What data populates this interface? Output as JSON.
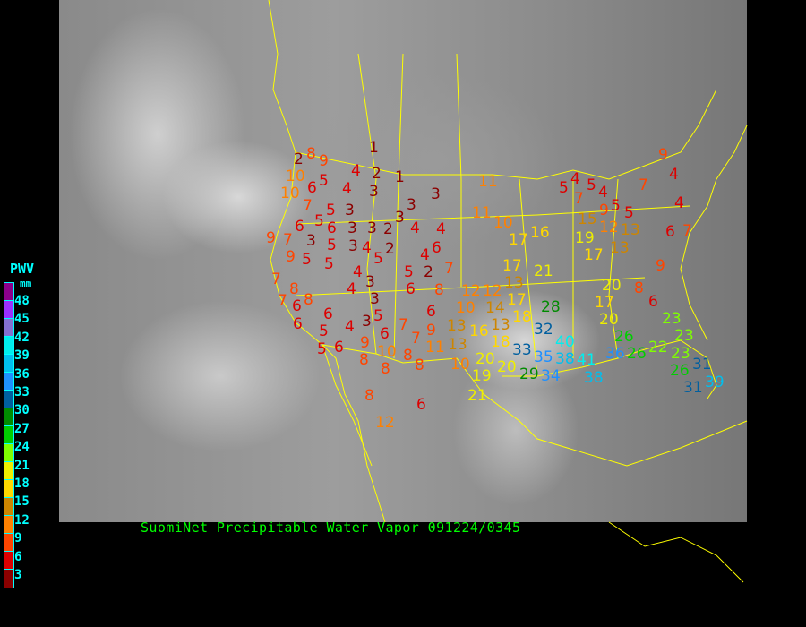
{
  "title": "SuomiNet Precipitable Water Vapor 091224/0345",
  "legend": {
    "title": "PWV",
    "unit": "mm",
    "labels": [
      "48",
      "45",
      "42",
      "39",
      "36",
      "33",
      "30",
      "27",
      "24",
      "21",
      "18",
      "15",
      "12",
      "9",
      "6",
      "3"
    ],
    "colors": [
      "#8b008b",
      "#9b30ff",
      "#8470d0",
      "#00eeee",
      "#00bfee",
      "#1e90ff",
      "#005f9f",
      "#008b00",
      "#00cd00",
      "#7fff00",
      "#eeee00",
      "#ffd700",
      "#cd8500",
      "#ff8000",
      "#ff4500",
      "#dd0000",
      "#8b0000"
    ]
  },
  "colors": {
    "border_lines": "#ffff00",
    "title": "#00ff00",
    "legend_text": "#00ffff"
  },
  "stations": [
    "1",
    "8",
    "9",
    "2",
    "10",
    "5",
    "6",
    "4",
    "2",
    "1",
    "3",
    "4",
    "10",
    "7",
    "5",
    "5",
    "6",
    "3",
    "3",
    "3",
    "3",
    "4",
    "4",
    "2",
    "3",
    "3",
    "6",
    "9",
    "7",
    "3",
    "5",
    "3",
    "4",
    "2",
    "9",
    "5",
    "5",
    "5",
    "6",
    "4",
    "2",
    "7",
    "5",
    "4",
    "7",
    "8",
    "4",
    "3",
    "6",
    "8",
    "12",
    "7",
    "8",
    "6",
    "6",
    "3",
    "5",
    "6",
    "10",
    "14",
    "6",
    "3",
    "4",
    "7",
    "6",
    "9",
    "13",
    "5",
    "5",
    "6",
    "9",
    "7",
    "10",
    "11",
    "13",
    "8",
    "8",
    "8",
    "8",
    "10",
    "19",
    "20",
    "21",
    "8",
    "6",
    "12",
    "16",
    "13",
    "18",
    "11",
    "11",
    "10",
    "16",
    "17",
    "5",
    "4",
    "5",
    "7",
    "4",
    "5",
    "9",
    "15",
    "12",
    "5",
    "7",
    "4",
    "4",
    "13",
    "13",
    "19",
    "17",
    "6",
    "7",
    "9",
    "9",
    "17",
    "21",
    "13",
    "12",
    "17",
    "18",
    "28",
    "32",
    "40",
    "33",
    "35",
    "38",
    "41",
    "20",
    "29",
    "34",
    "38",
    "20",
    "17",
    "20",
    "8",
    "6",
    "26",
    "36",
    "26",
    "23",
    "23",
    "22",
    "23",
    "26",
    "31",
    "31",
    "39"
  ]
}
